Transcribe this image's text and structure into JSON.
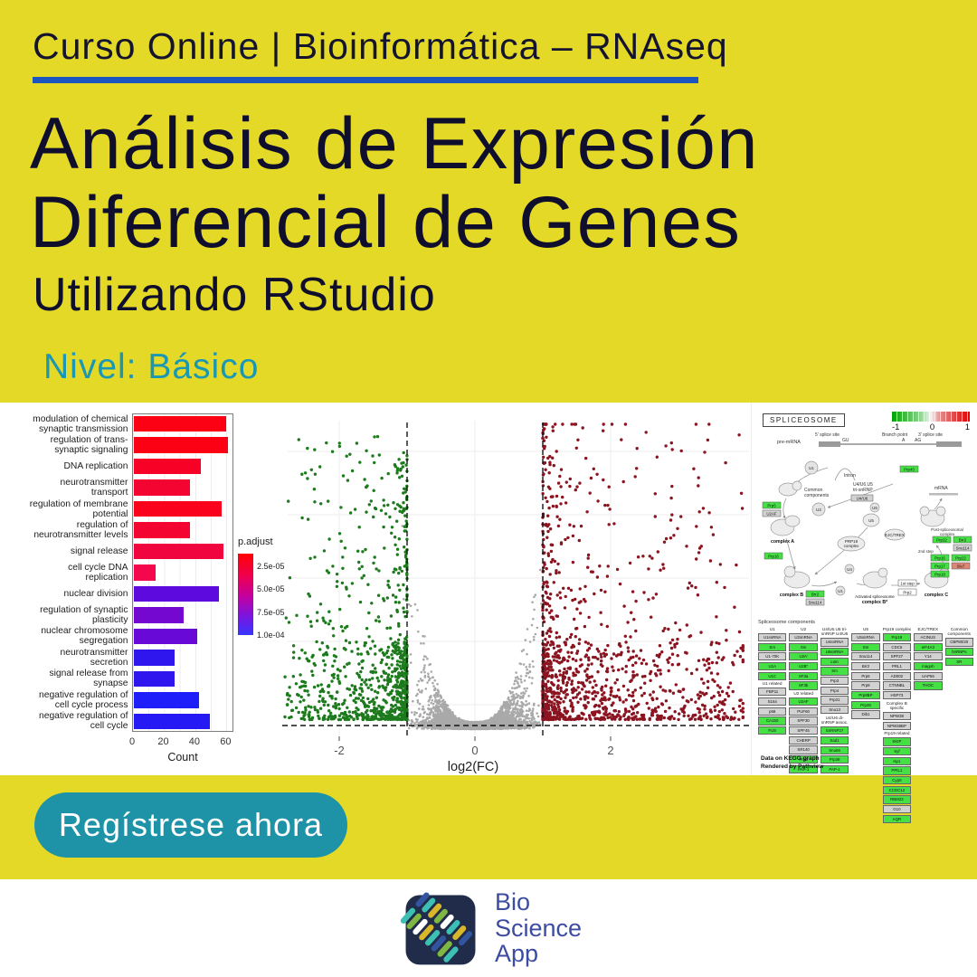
{
  "page": {
    "bg": "#e5d928",
    "band_bg": "#ffffff",
    "bottom_bg": "#ffffff"
  },
  "header": {
    "kicker": "Curso Online | Bioinformática – RNAseq",
    "underline_color": "#1b56c0",
    "text_color": "#14142f"
  },
  "title": {
    "line1": "Análisis de Expresión",
    "line2": "Diferencial de Genes",
    "subtitle": "Utilizando RStudio",
    "color": "#0f0f2d"
  },
  "level": {
    "label": "Nivel: Básico",
    "color": "#1a98b3"
  },
  "cta": {
    "label": "Regístrese ahora",
    "bg": "#1e93a8",
    "text_color": "#ffffff"
  },
  "footer_logo": {
    "line1": "Bio",
    "line2": "Science",
    "line3": "App",
    "text_color": "#3c4da1",
    "tile_color": "#202c49",
    "dna_rows": [
      [
        "#3cc0b4",
        "#33549f"
      ],
      [
        "#7fb743",
        "#3cc0b4"
      ],
      [
        "#ffffff",
        "#d8b72b"
      ],
      [
        "#d8b72b",
        "#7fb743"
      ],
      [
        "#3cc0b4",
        "#ffffff"
      ],
      [
        "#33549f",
        "#3cc0b4"
      ],
      [
        "#7fb743",
        "#d8b72b"
      ],
      [
        "#3cc0b4",
        "#33549f"
      ]
    ]
  },
  "chart_data": [
    {
      "type": "bar",
      "title": "",
      "xlabel": "Count",
      "ylabel": "",
      "x_ticks": [
        "0",
        "20",
        "40",
        "60"
      ],
      "xlim": [
        0,
        65
      ],
      "categories": [
        "modulation of chemical synaptic transmission",
        "regulation of trans-synaptic signaling",
        "DNA replication",
        "neurotransmitter transport",
        "regulation of membrane potential",
        "regulation of neurotransmitter levels",
        "signal release",
        "cell cycle DNA replication",
        "nuclear division",
        "regulation of synaptic plasticity",
        "nuclear chromosome segregation",
        "neurotransmitter secretion",
        "signal release from synapse",
        "negative regulation of cell cycle process",
        "negative regulation of cell cycle"
      ],
      "values": [
        60,
        61,
        43,
        36,
        57,
        36,
        58,
        14,
        55,
        32,
        41,
        26,
        26,
        42,
        49
      ],
      "bar_colors": [
        "#fc0013",
        "#fc0013",
        "#f70226",
        "#f40430",
        "#fa021c",
        "#f40430",
        "#f1053e",
        "#f5074e",
        "#5c0ade",
        "#7408d0",
        "#6809d8",
        "#3016ee",
        "#3016ee",
        "#1e1efa",
        "#2519f4"
      ],
      "legend": {
        "title": "p.adjust",
        "tick_labels": [
          "2.5e-05",
          "5.0e-05",
          "7.5e-05",
          "1.0e-04"
        ],
        "tick_pos": [
          15,
          43,
          72,
          100
        ],
        "gradient": [
          "#ff0005",
          "#ef0050",
          "#c4009e",
          "#7d14dd",
          "#3636ff"
        ]
      },
      "grid": true,
      "legend_position": "right"
    },
    {
      "type": "scatter",
      "subtype": "volcano",
      "title": "",
      "xlabel": "log2(FC)",
      "x_ticks": [
        "-2",
        "0",
        "2"
      ],
      "xlim": [
        -2.87,
        4.07
      ],
      "vlines": [
        -1,
        1
      ],
      "hline": "significance threshold (dashed, near baseline)",
      "colors": {
        "down": "#1d7a1d",
        "neutral": "#a9a9a9",
        "up": "#8b1420"
      },
      "n_points": {
        "down": 950,
        "neutral": 5200,
        "up": 1250
      },
      "seed": 1234,
      "grid": true
    }
  ],
  "kegg": {
    "title": "SPLICEOSOME",
    "color_key": {
      "labels": [
        "-1",
        "0",
        "1"
      ]
    },
    "premrna": {
      "label": "pre-mRNA",
      "five": "5' splice site",
      "branch": "Branch point",
      "three": "3' splice site",
      "gu": "GU",
      "a": "A",
      "ag": "AG"
    },
    "cartoon": {
      "u1a": "U1",
      "u2": "U2",
      "u5": "U5",
      "u6": "U6",
      "u4": "U4",
      "u1b": "U1",
      "intron": "Intron",
      "mrna": "mRNA",
      "common1": "Common",
      "common2": "components",
      "tri1": "U4/U6.U5",
      "tri2": "tri-snRNP",
      "u4u6": "U4/U6",
      "prp19c1": "PRP19",
      "prp19c2": "complex",
      "ejc": "EJC/TREX",
      "compA": "complex A",
      "compB": "complex B",
      "compC": "complex C",
      "act1": "Activated spliceosome",
      "act2": "complex B*",
      "post1": "Post-spliceosomal",
      "post2": "complex",
      "step1": "1st step",
      "step2": "2nd step",
      "g_prp43": "Prp43",
      "g_prp5": "Prp5",
      "g_u2af": "U2AF",
      "g_prp16": "Prp16",
      "g_prp22a": "Prp22",
      "g_brr2a": "Brr2",
      "g_snu114a": "Snu114",
      "g_brr2b": "Brr2",
      "g_snu114b": "Snu114",
      "g_prp16b": "Prp16",
      "g_prp22b": "Prp22",
      "g_prp17": "Prp17",
      "g_slu7": "Slu7",
      "g_prp18": "Prp18",
      "g_prp2": "Prp2"
    },
    "grid_title": "Spliceosome components",
    "columns": [
      {
        "segments": [
          {
            "header": "U1",
            "boxes": [
              {
                "t": "U1snRNA",
                "c": "n"
              },
              {
                "t": "Sm",
                "c": "g"
              },
              {
                "t": "U1-70K",
                "c": "n"
              },
              {
                "t": "U1A",
                "c": "g"
              },
              {
                "t": "U1C",
                "c": "g"
              }
            ]
          },
          {
            "header": "U1 related",
            "boxes": [
              {
                "t": "FBP11",
                "c": "n"
              },
              {
                "t": "S164",
                "c": "n"
              },
              {
                "t": "p68",
                "c": "n"
              },
              {
                "t": "CA150",
                "c": "g"
              },
              {
                "t": "FUS",
                "c": "g"
              }
            ]
          }
        ]
      },
      {
        "segments": [
          {
            "header": "U2",
            "boxes": [
              {
                "t": "U2snRNA",
                "c": "n"
              },
              {
                "t": "Sm",
                "c": "g"
              },
              {
                "t": "U2A'",
                "c": "g"
              },
              {
                "t": "U2B''",
                "c": "g"
              },
              {
                "t": "SF3a",
                "c": "g"
              },
              {
                "t": "SF3b",
                "c": "g"
              }
            ]
          },
          {
            "header": "U2 related",
            "boxes": [
              {
                "t": "U2AF",
                "c": "g"
              },
              {
                "t": "PUF60",
                "c": "n"
              },
              {
                "t": "SPF30",
                "c": "n"
              },
              {
                "t": "SPF45",
                "c": "n"
              },
              {
                "t": "CHERP",
                "c": "n"
              },
              {
                "t": "SR140",
                "c": "n"
              },
              {
                "t": "Prp5",
                "c": "g"
              },
              {
                "t": "PAP-1",
                "c": "g"
              }
            ]
          }
        ]
      },
      {
        "segments": [
          {
            "header": "U4/U6.U5 tri-snRNP  U4/U6",
            "boxes": [
              {
                "t": "U4snRNA",
                "c": "n"
              },
              {
                "t": "U6snRNA",
                "c": "g"
              },
              {
                "t": "Lsm",
                "c": "g"
              },
              {
                "t": "Sm",
                "c": "g"
              },
              {
                "t": "Prp3",
                "c": "n"
              },
              {
                "t": "Prp4",
                "c": "n"
              },
              {
                "t": "Prp31",
                "c": "n"
              },
              {
                "t": "Snu13",
                "c": "n"
              }
            ]
          },
          {
            "header": "U4/U6 di-snRNP assoc.",
            "boxes": [
              {
                "t": "SnRNP27",
                "c": "g"
              },
              {
                "t": "Sad1",
                "c": "g"
              },
              {
                "t": "Snu66",
                "c": "g"
              },
              {
                "t": "Prp38",
                "c": "g"
              },
              {
                "t": "PAP-1",
                "c": "g"
              }
            ]
          }
        ]
      },
      {
        "segments": [
          {
            "header": "U5",
            "boxes": [
              {
                "t": "U5snRNA",
                "c": "n"
              },
              {
                "t": "Sm",
                "c": "g"
              },
              {
                "t": "Snu114",
                "c": "n"
              },
              {
                "t": "Brr2",
                "c": "n"
              },
              {
                "t": "Prp6",
                "c": "n"
              },
              {
                "t": "Prp8",
                "c": "n"
              },
              {
                "t": "Prp8BP",
                "c": "g"
              },
              {
                "t": "Prp28",
                "c": "g"
              },
              {
                "t": "Dib1",
                "c": "n"
              }
            ]
          }
        ]
      },
      {
        "segments": [
          {
            "header": "Prp19 complex",
            "boxes": [
              {
                "t": "Prp19",
                "c": "g"
              },
              {
                "t": "CDC5",
                "c": "n"
              },
              {
                "t": "SPF27",
                "c": "n"
              },
              {
                "t": "PRL1",
                "c": "n"
              },
              {
                "t": "AD002",
                "c": "n"
              },
              {
                "t": "CTNNBL",
                "c": "n"
              },
              {
                "t": "HSP73",
                "c": "n"
              }
            ]
          },
          {
            "header": "Complex B specific",
            "boxes": [
              {
                "t": "NPW38",
                "c": "n"
              },
              {
                "t": "NPW38BP",
                "c": "n"
              }
            ]
          },
          {
            "header": "Prp19 related",
            "boxes": [
              {
                "t": "SKIP",
                "c": "g"
              },
              {
                "t": "Syf",
                "c": "g"
              },
              {
                "t": "Isy1",
                "c": "g"
              },
              {
                "t": "PPIL1",
                "c": "g"
              },
              {
                "t": "Cyp8",
                "c": "g"
              },
              {
                "t": "CCDC12",
                "c": "g"
              },
              {
                "t": "RBM22",
                "c": "g"
              },
              {
                "t": "G10",
                "c": "n"
              },
              {
                "t": "AQR",
                "c": "g"
              }
            ]
          }
        ]
      },
      {
        "segments": [
          {
            "header": "EJC/TREX",
            "boxes": [
              {
                "t": "ACINUS",
                "c": "n"
              },
              {
                "t": "eIF4A3",
                "c": "g"
              },
              {
                "t": "Y14",
                "c": "n"
              },
              {
                "t": "magoh",
                "c": "g"
              },
              {
                "t": "UAP56",
                "c": "n"
              },
              {
                "t": "THOC",
                "c": "g"
              }
            ]
          }
        ]
      },
      {
        "segments": [
          {
            "header": "Common components",
            "boxes": [
              {
                "t": "CBP80/20",
                "c": "n"
              },
              {
                "t": "hnRNPs",
                "c": "g"
              },
              {
                "t": "SR",
                "c": "g"
              }
            ]
          }
        ]
      }
    ],
    "footer1": "Data on KEGG graph",
    "footer2": "Rendered by Pathview"
  }
}
